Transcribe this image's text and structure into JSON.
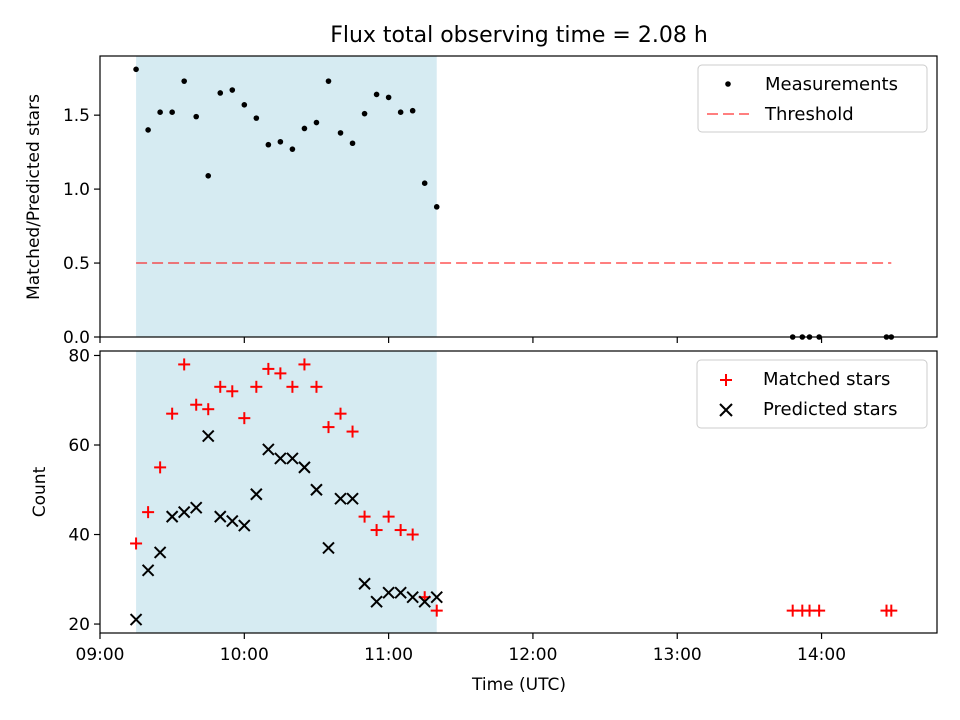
{
  "chart_data": [
    {
      "type": "scatter",
      "title": "Flux total observing time = 2.08 h",
      "xlabel": "",
      "ylabel": "Matched/Predicted stars",
      "ylim": [
        0,
        1.9
      ],
      "yticks": [
        "0.0",
        "0.5",
        "1.0",
        "1.5"
      ],
      "legend_position": "top-right",
      "observing_window": {
        "start": "09:15",
        "end": "11:20",
        "color": "#add8e6"
      },
      "series": [
        {
          "name": "Measurements",
          "marker": "dot",
          "color": "#000000",
          "points": [
            [
              "09:15",
              1.81
            ],
            [
              "09:20",
              1.4
            ],
            [
              "09:25",
              1.52
            ],
            [
              "09:30",
              1.52
            ],
            [
              "09:35",
              1.73
            ],
            [
              "09:40",
              1.49
            ],
            [
              "09:45",
              1.09
            ],
            [
              "09:50",
              1.65
            ],
            [
              "09:55",
              1.67
            ],
            [
              "10:00",
              1.57
            ],
            [
              "10:05",
              1.48
            ],
            [
              "10:10",
              1.3
            ],
            [
              "10:15",
              1.32
            ],
            [
              "10:20",
              1.27
            ],
            [
              "10:25",
              1.41
            ],
            [
              "10:30",
              1.45
            ],
            [
              "10:35",
              1.73
            ],
            [
              "10:40",
              1.38
            ],
            [
              "10:45",
              1.31
            ],
            [
              "10:50",
              1.51
            ],
            [
              "10:55",
              1.64
            ],
            [
              "11:00",
              1.62
            ],
            [
              "11:05",
              1.52
            ],
            [
              "11:10",
              1.53
            ],
            [
              "11:15",
              1.04
            ],
            [
              "11:20",
              0.88
            ],
            [
              "13:48",
              0.0
            ],
            [
              "13:52",
              0.0
            ],
            [
              "13:55",
              0.0
            ],
            [
              "13:59",
              0.0
            ],
            [
              "14:27",
              0.0
            ],
            [
              "14:29",
              0.0
            ]
          ]
        },
        {
          "name": "Threshold",
          "marker": "dashed-line",
          "color": "#ff7f7f",
          "points": [
            [
              "09:15",
              0.5
            ],
            [
              "14:29",
              0.5
            ]
          ]
        }
      ]
    },
    {
      "type": "scatter",
      "title": "",
      "xlabel": "Time (UTC)",
      "ylabel": "Count",
      "ylim": [
        18,
        81
      ],
      "yticks": [
        "20",
        "40",
        "60",
        "80"
      ],
      "xlim": [
        "09:00",
        "14:48"
      ],
      "xticks": [
        "09:00",
        "10:00",
        "11:00",
        "12:00",
        "13:00",
        "14:00"
      ],
      "legend_position": "top-right",
      "observing_window": {
        "start": "09:15",
        "end": "11:20",
        "color": "#add8e6"
      },
      "series": [
        {
          "name": "Matched stars",
          "marker": "plus",
          "color": "#ff0000",
          "points": [
            [
              "09:15",
              38
            ],
            [
              "09:20",
              45
            ],
            [
              "09:25",
              55
            ],
            [
              "09:30",
              67
            ],
            [
              "09:35",
              78
            ],
            [
              "09:40",
              69
            ],
            [
              "09:45",
              68
            ],
            [
              "09:50",
              73
            ],
            [
              "09:55",
              72
            ],
            [
              "10:00",
              66
            ],
            [
              "10:05",
              73
            ],
            [
              "10:10",
              77
            ],
            [
              "10:15",
              76
            ],
            [
              "10:20",
              73
            ],
            [
              "10:25",
              78
            ],
            [
              "10:30",
              73
            ],
            [
              "10:35",
              64
            ],
            [
              "10:40",
              67
            ],
            [
              "10:45",
              63
            ],
            [
              "10:50",
              44
            ],
            [
              "10:55",
              41
            ],
            [
              "11:00",
              44
            ],
            [
              "11:05",
              41
            ],
            [
              "11:10",
              40
            ],
            [
              "11:15",
              26
            ],
            [
              "11:20",
              23
            ],
            [
              "13:48",
              23
            ],
            [
              "13:52",
              23
            ],
            [
              "13:55",
              23
            ],
            [
              "13:59",
              23
            ],
            [
              "14:27",
              23
            ],
            [
              "14:29",
              23
            ]
          ]
        },
        {
          "name": "Predicted stars",
          "marker": "x",
          "color": "#000000",
          "points": [
            [
              "09:15",
              21
            ],
            [
              "09:20",
              32
            ],
            [
              "09:25",
              36
            ],
            [
              "09:30",
              44
            ],
            [
              "09:35",
              45
            ],
            [
              "09:40",
              46
            ],
            [
              "09:45",
              62
            ],
            [
              "09:50",
              44
            ],
            [
              "09:55",
              43
            ],
            [
              "10:00",
              42
            ],
            [
              "10:05",
              49
            ],
            [
              "10:10",
              59
            ],
            [
              "10:15",
              57
            ],
            [
              "10:20",
              57
            ],
            [
              "10:25",
              55
            ],
            [
              "10:30",
              50
            ],
            [
              "10:35",
              37
            ],
            [
              "10:40",
              48
            ],
            [
              "10:45",
              48
            ],
            [
              "10:50",
              29
            ],
            [
              "10:55",
              25
            ],
            [
              "11:00",
              27
            ],
            [
              "11:05",
              27
            ],
            [
              "11:10",
              26
            ],
            [
              "11:15",
              25
            ],
            [
              "11:20",
              26
            ]
          ]
        }
      ]
    }
  ]
}
